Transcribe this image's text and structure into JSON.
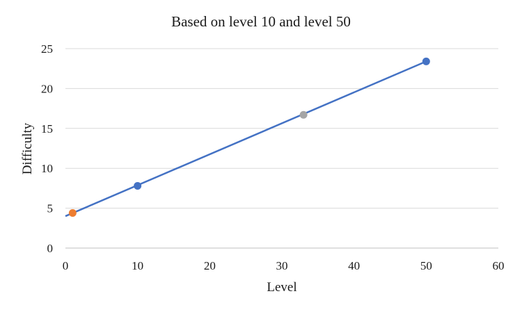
{
  "chart_data": {
    "type": "scatter",
    "title": "Based on level 10 and level 50",
    "xlabel": "Level",
    "ylabel": "Difficulty",
    "xlim": [
      0,
      60
    ],
    "ylim": [
      0,
      25
    ],
    "x_ticks": [
      0,
      10,
      20,
      30,
      40,
      50,
      60
    ],
    "y_ticks": [
      0,
      5,
      10,
      15,
      20,
      25
    ],
    "x_tick_labels": [
      "0",
      "10",
      "20",
      "30",
      "40",
      "50",
      "60"
    ],
    "y_tick_labels": [
      "0",
      "5",
      "10",
      "15",
      "20",
      "25"
    ],
    "grid": "horizontal",
    "legend": "none",
    "trendline": {
      "type": "linear",
      "points": [
        [
          0,
          4.0
        ],
        [
          50,
          23.4
        ]
      ],
      "color": "#4472c4"
    },
    "points": [
      {
        "x": 1,
        "y": 4.4,
        "color": "#ed7d31"
      },
      {
        "x": 10,
        "y": 7.8,
        "color": "#4472c4"
      },
      {
        "x": 33,
        "y": 16.7,
        "color": "#a5a5a5"
      },
      {
        "x": 50,
        "y": 23.4,
        "color": "#4472c4"
      }
    ]
  }
}
